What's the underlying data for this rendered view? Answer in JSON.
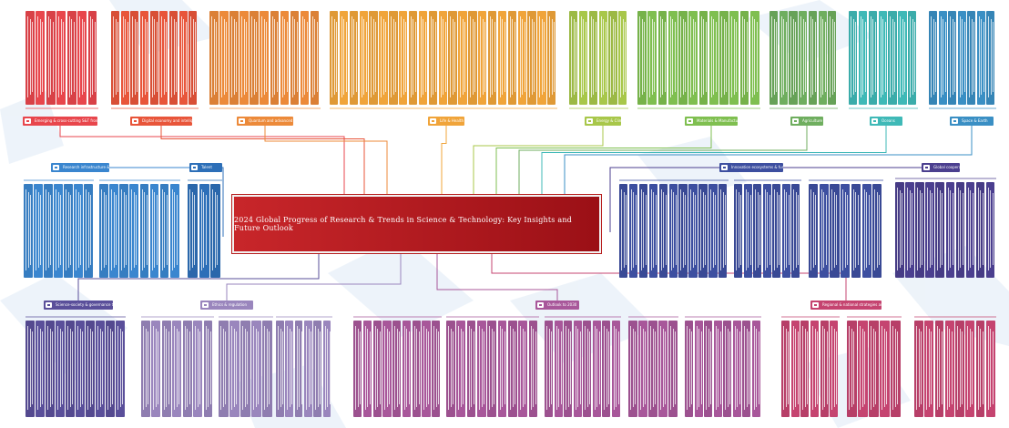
{
  "center_title": "2024 Global Progress of Research & Trends in Science & Technology: Key Insights and Future Outlook",
  "branches": [
    {
      "id": "b1",
      "title": "Emerging & cross-cutting S&T frontiers",
      "color": "#e8464c",
      "group": "top"
    },
    {
      "id": "b2",
      "title": "Digital economy and intelligent systems",
      "color": "#e8553a",
      "group": "top"
    },
    {
      "id": "b3",
      "title": "Quantum and advanced computing",
      "color": "#ec8a3a",
      "group": "top"
    },
    {
      "id": "b4",
      "title": "Life & Health",
      "color": "#f0a43a",
      "group": "top"
    },
    {
      "id": "b5",
      "title": "Energy & Climate",
      "color": "#a8c74a",
      "group": "top"
    },
    {
      "id": "b6",
      "title": "Materials & Manufacturing",
      "color": "#7fbf50",
      "group": "top"
    },
    {
      "id": "b7",
      "title": "Agriculture",
      "color": "#6fae5f",
      "group": "top"
    },
    {
      "id": "b8",
      "title": "Oceans",
      "color": "#3fb9b7",
      "group": "top"
    },
    {
      "id": "b9",
      "title": "Space & Earth",
      "color": "#3a8fc4",
      "group": "top"
    },
    {
      "id": "b10",
      "title": "Research infrastructure & open science",
      "color": "#3a86cf",
      "group": "left"
    },
    {
      "id": "b11",
      "title": "Talent",
      "color": "#2d6fb8",
      "group": "left"
    },
    {
      "id": "b12",
      "title": "Innovation ecosystems & funding policy",
      "color": "#3d4fa0",
      "group": "right"
    },
    {
      "id": "b13",
      "title": "Global cooperation",
      "color": "#4b3f8f",
      "group": "right"
    },
    {
      "id": "b14",
      "title": "Science-society & governance trends",
      "color": "#5a4f9a",
      "group": "bottom"
    },
    {
      "id": "b15",
      "title": "Ethics & regulation",
      "color": "#9a86bd",
      "group": "bottom"
    },
    {
      "id": "b16",
      "title": "Outlook to 2030",
      "color": "#a8579a",
      "group": "bottom"
    },
    {
      "id": "b17",
      "title": "Regional & national strategies and indicators",
      "color": "#c54470",
      "group": "bottom"
    }
  ]
}
